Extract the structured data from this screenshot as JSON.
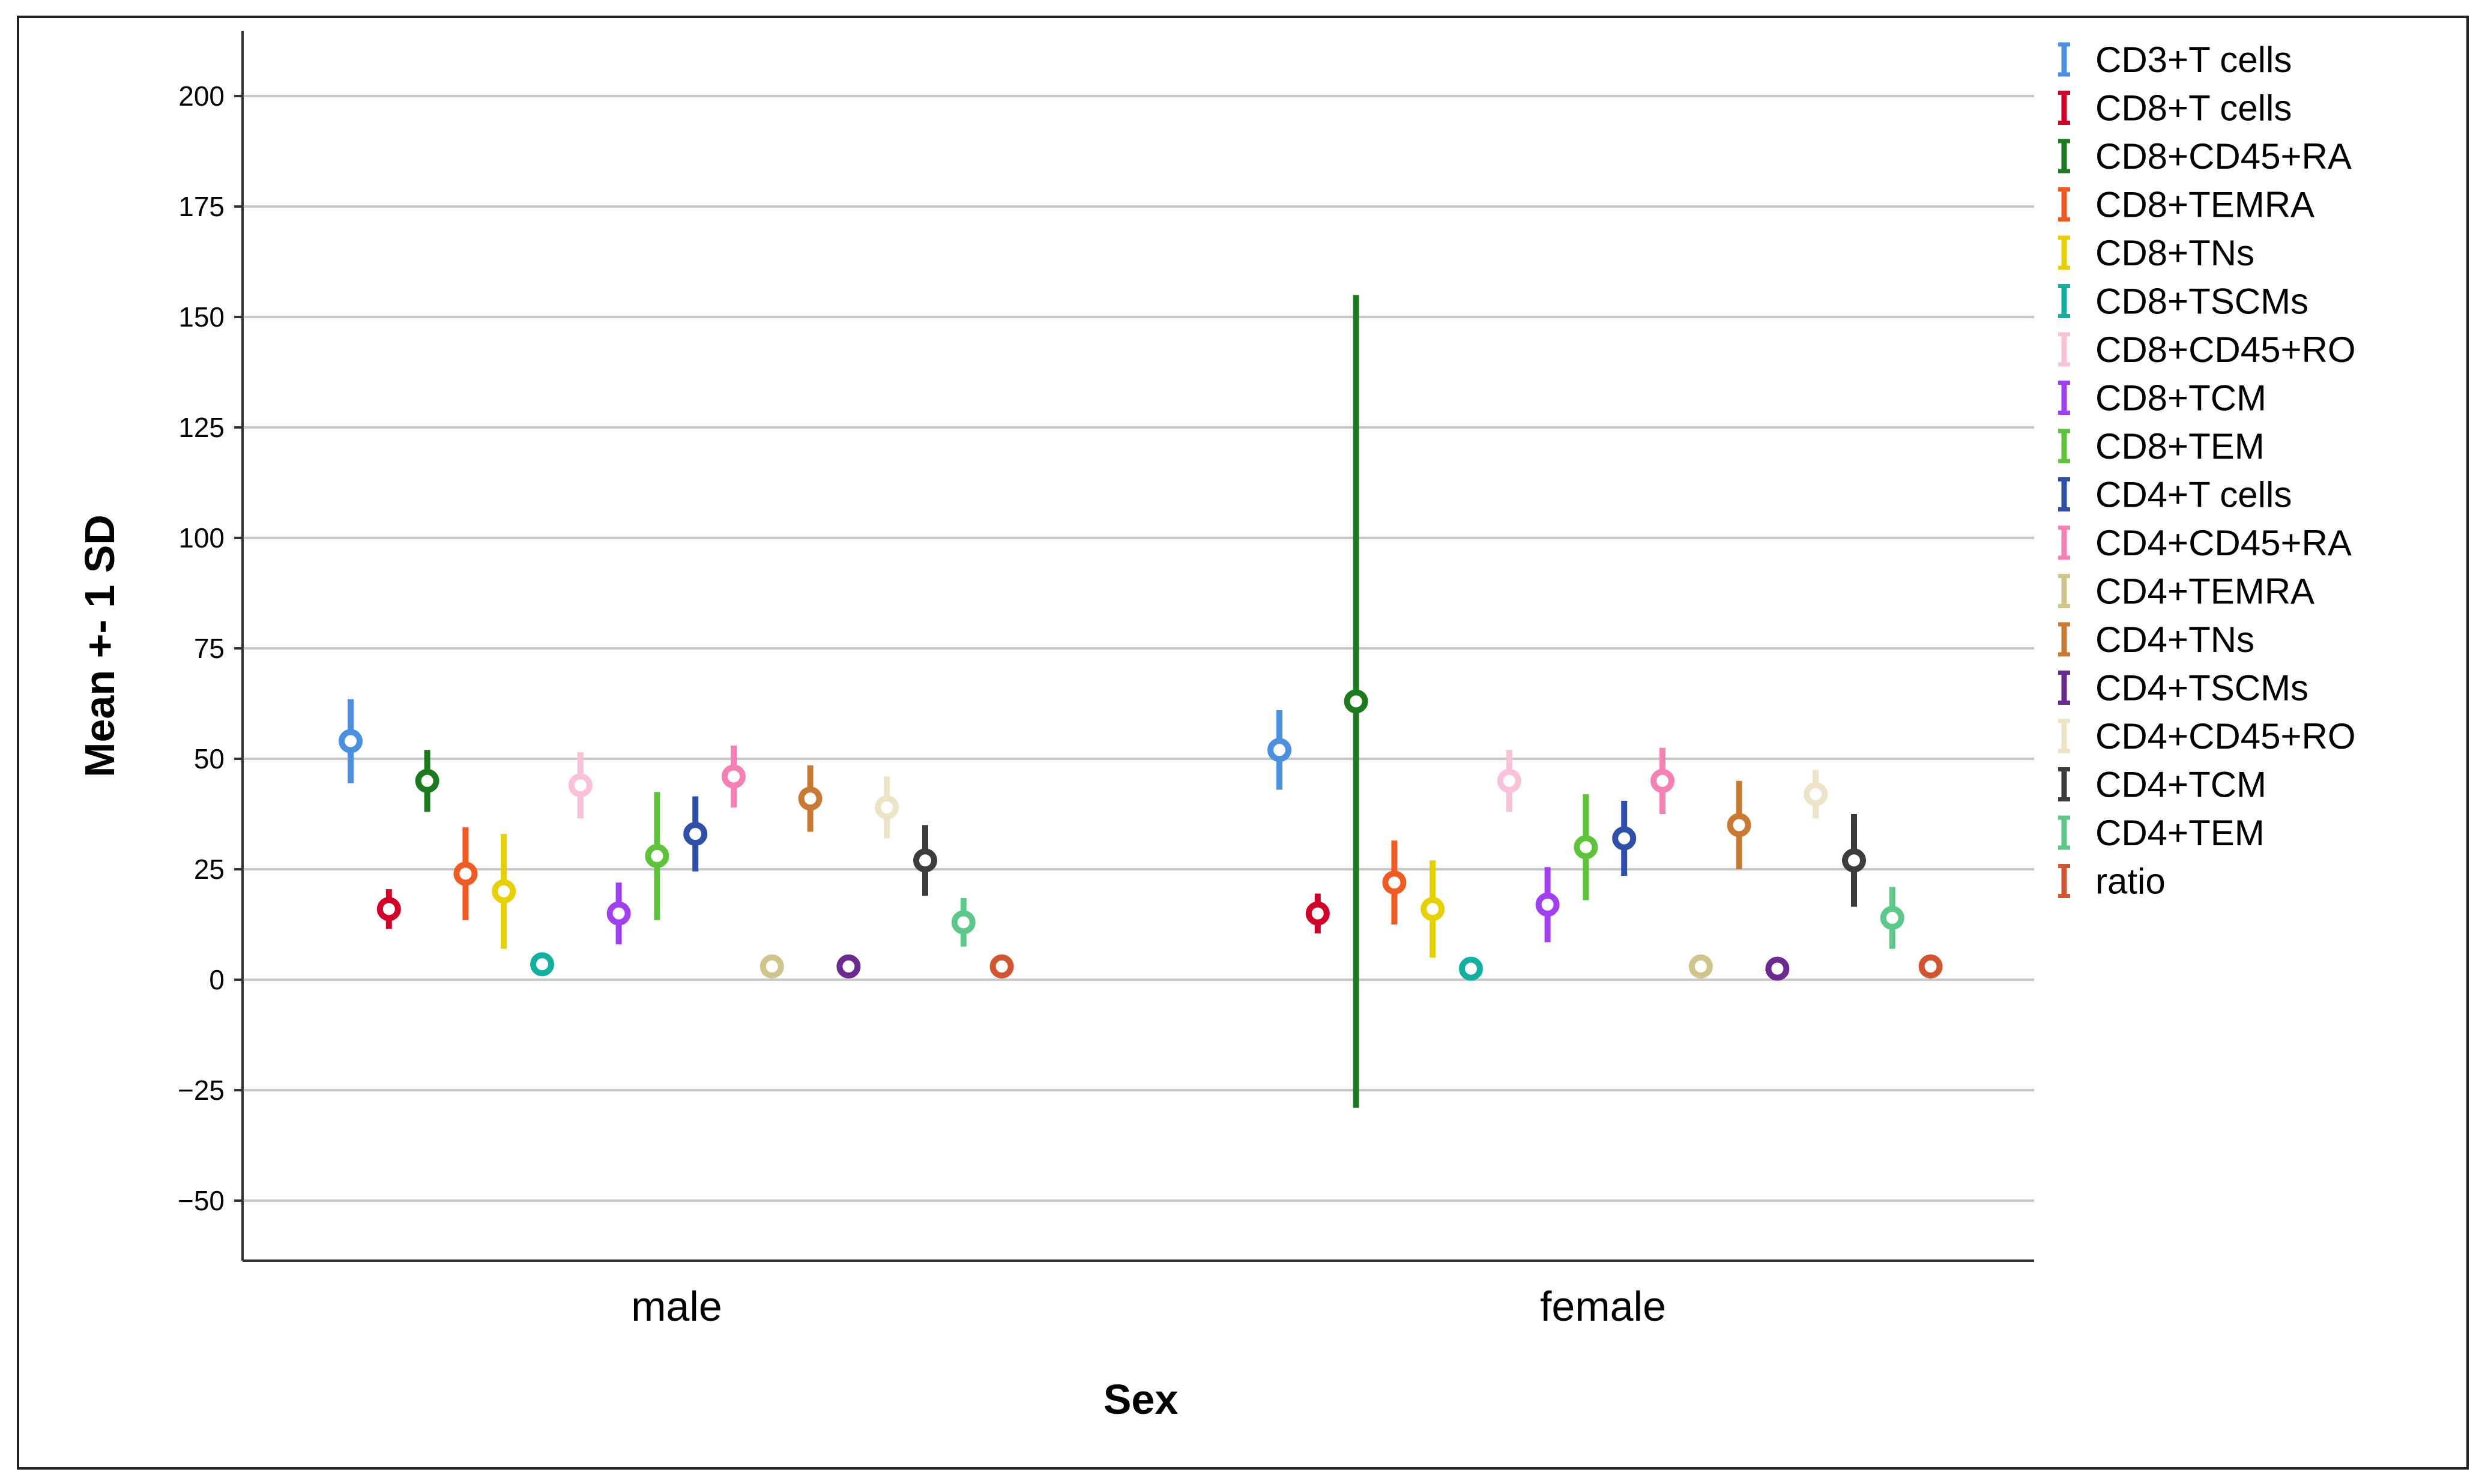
{
  "chart_data": {
    "type": "errorbar",
    "xlabel": "Sex",
    "ylabel": "Mean +- 1 SD",
    "categories": [
      "male",
      "female"
    ],
    "yticks": [
      200,
      175,
      150,
      125,
      100,
      75,
      50,
      25,
      0,
      -25,
      -50
    ],
    "ytick_labels": [
      "200",
      "175",
      "150",
      "125",
      "100",
      "75",
      "50",
      "25",
      "0",
      "−25",
      "−50"
    ],
    "ylim": [
      -64,
      215
    ],
    "grid": true,
    "legend_position": "right",
    "series": [
      {
        "name": "CD3+T cells",
        "color": "#4a8fe0",
        "mean": [
          54,
          52
        ],
        "sd": [
          9.5,
          9
        ]
      },
      {
        "name": "CD8+T cells",
        "color": "#d0002a",
        "mean": [
          16,
          15
        ],
        "sd": [
          4.5,
          4.5
        ]
      },
      {
        "name": "CD8+CD45+RA",
        "color": "#1e7a1e",
        "mean": [
          45,
          63
        ],
        "sd": [
          7,
          92
        ]
      },
      {
        "name": "CD8+TEMRA",
        "color": "#f05a23",
        "mean": [
          24,
          22
        ],
        "sd": [
          10.5,
          9.5
        ]
      },
      {
        "name": "CD8+TNs",
        "color": "#e6d000",
        "mean": [
          20,
          16
        ],
        "sd": [
          13,
          11
        ]
      },
      {
        "name": "CD8+TSCMs",
        "color": "#13b0a0",
        "mean": [
          3.5,
          2.5
        ],
        "sd": [
          0.5,
          0.5
        ]
      },
      {
        "name": "CD8+CD45+RO",
        "color": "#f9c2d8",
        "mean": [
          44,
          45
        ],
        "sd": [
          7.5,
          7
        ]
      },
      {
        "name": "CD8+TCM",
        "color": "#a040f0",
        "mean": [
          15,
          17
        ],
        "sd": [
          7,
          8.5
        ]
      },
      {
        "name": "CD8+TEM",
        "color": "#5ec23a",
        "mean": [
          28,
          30
        ],
        "sd": [
          14.5,
          12
        ]
      },
      {
        "name": "CD4+T cells",
        "color": "#2f4fa8",
        "mean": [
          33,
          32
        ],
        "sd": [
          8.5,
          8.5
        ]
      },
      {
        "name": "CD4+CD45+RA",
        "color": "#f580b4",
        "mean": [
          46,
          45
        ],
        "sd": [
          7,
          7.5
        ]
      },
      {
        "name": "CD4+TEMRA",
        "color": "#cfc48c",
        "mean": [
          3,
          3
        ],
        "sd": [
          0.5,
          0.5
        ]
      },
      {
        "name": "CD4+TNs",
        "color": "#c87a34",
        "mean": [
          41,
          35
        ],
        "sd": [
          7.5,
          10
        ]
      },
      {
        "name": "CD4+TSCMs",
        "color": "#6a2a90",
        "mean": [
          3,
          2.5
        ],
        "sd": [
          0.5,
          0.5
        ]
      },
      {
        "name": "CD4+CD45+RO",
        "color": "#ede3c8",
        "mean": [
          39,
          42
        ],
        "sd": [
          7,
          5.5
        ]
      },
      {
        "name": "CD4+TCM",
        "color": "#3c3c3c",
        "mean": [
          27,
          27
        ],
        "sd": [
          8,
          10.5
        ]
      },
      {
        "name": "CD4+TEM",
        "color": "#5cc98a",
        "mean": [
          13,
          14
        ],
        "sd": [
          5.5,
          7
        ]
      },
      {
        "name": "ratio",
        "color": "#d05530",
        "mean": [
          3,
          3
        ],
        "sd": [
          0.5,
          0.5
        ]
      }
    ]
  }
}
